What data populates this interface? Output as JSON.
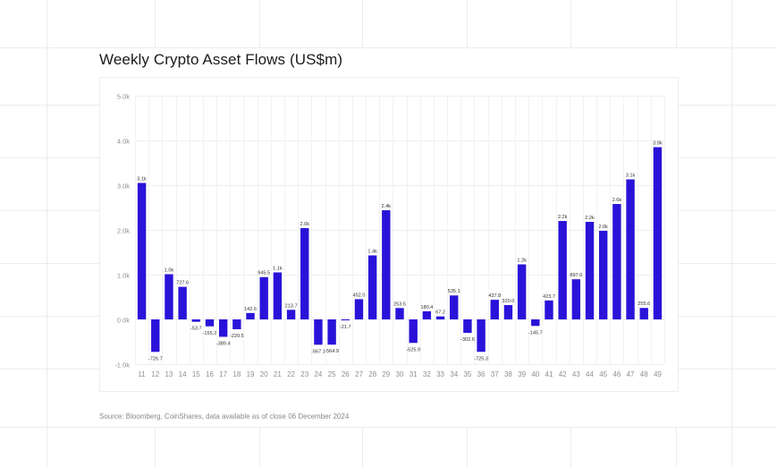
{
  "chart_data": {
    "type": "bar",
    "title": "Weekly Crypto Asset Flows (US$m)",
    "xlabel": "",
    "ylabel": "",
    "ylim": [
      -1000,
      5000
    ],
    "yticks": [
      -1000,
      0,
      1000,
      2000,
      3000,
      4000,
      5000
    ],
    "ytick_labels": [
      "-1.0k",
      "0.0k",
      "1.0k",
      "2.0k",
      "3.0k",
      "4.0k",
      "5.0k"
    ],
    "grid": true,
    "bar_color": "#2a13d9",
    "categories": [
      "11",
      "12",
      "13",
      "14",
      "15",
      "16",
      "17",
      "18",
      "19",
      "20",
      "21",
      "22",
      "23",
      "24",
      "25",
      "26",
      "27",
      "28",
      "29",
      "30",
      "31",
      "32",
      "33",
      "34",
      "35",
      "36",
      "37",
      "38",
      "39",
      "40",
      "41",
      "42",
      "43",
      "44",
      "45",
      "46",
      "47",
      "48",
      "49"
    ],
    "values": [
      3050,
      -726.7,
      1010,
      727.6,
      -53.7,
      -155.2,
      -389.4,
      -220.5,
      142.6,
      945.5,
      1050,
      213.7,
      2040,
      -567.1,
      -564.9,
      -21.7,
      452.0,
      1430,
      2440,
      253.5,
      -525.9,
      180.4,
      67.2,
      535.1,
      -302.6,
      -725.3,
      437.8,
      320.0,
      1230,
      -145.7,
      423.7,
      2200,
      897.0,
      2180,
      1980,
      2580,
      3130,
      255.6,
      3850
    ],
    "data_labels": [
      "3.1k",
      "-726.7",
      "1.0k",
      "727.6",
      "-53.7",
      "-155.2",
      "-389.4",
      "-220.5",
      "142.6",
      "945.5",
      "1.1k",
      "213.7",
      "2.0k",
      "-567.1",
      "-564.9",
      "-21.7",
      "452.0",
      "1.4k",
      "2.4k",
      "253.5",
      "-525.9",
      "180.4",
      "67.2",
      "535.1",
      "-302.6",
      "-725.3",
      "437.8",
      "320.0",
      "1.2k",
      "-145.7",
      "423.7",
      "2.2k",
      "897.0",
      "2.2k",
      "2.0k",
      "2.6k",
      "3.1k",
      "255.6",
      "3.9k"
    ]
  },
  "source_note": "Source: Bloomberg, CoinShares, data available as of close 06 December 2024"
}
